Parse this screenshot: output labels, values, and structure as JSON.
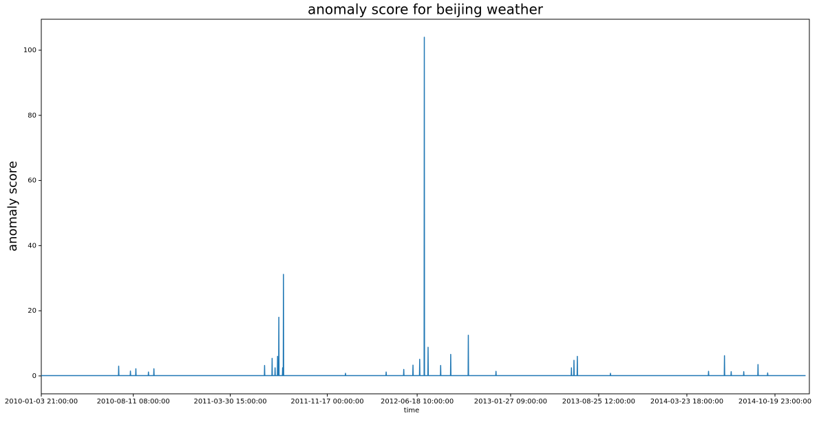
{
  "chart_data": {
    "type": "line",
    "title": "anomaly score for beijing weather",
    "xlabel": "time",
    "ylabel": "anomaly score",
    "x": [
      "2010-01-03 21:00:00",
      "2010-07-07 00:00:00",
      "2010-07-07 12:00:00",
      "2010-07-08 00:00:00",
      "2010-08-04 00:00:00",
      "2010-08-04 12:00:00",
      "2010-08-05 00:00:00",
      "2010-08-17 00:00:00",
      "2010-08-17 12:00:00",
      "2010-08-18 00:00:00",
      "2010-09-16 00:00:00",
      "2010-09-16 12:00:00",
      "2010-09-17 00:00:00",
      "2010-09-29 00:00:00",
      "2010-09-29 12:00:00",
      "2010-09-30 00:00:00",
      "2011-06-20 00:00:00",
      "2011-06-20 12:00:00",
      "2011-06-21 00:00:00",
      "2011-07-08 00:00:00",
      "2011-07-08 12:00:00",
      "2011-07-09 00:00:00",
      "2011-07-15 00:00:00",
      "2011-07-15 12:00:00",
      "2011-07-16 00:00:00",
      "2011-07-21 00:00:00",
      "2011-07-21 12:00:00",
      "2011-07-22 00:00:00",
      "2011-07-24 00:00:00",
      "2011-07-24 12:00:00",
      "2011-07-25 00:00:00",
      "2011-08-02 00:00:00",
      "2011-08-02 12:00:00",
      "2011-08-03 00:00:00",
      "2011-08-04 00:00:00",
      "2011-08-04 12:00:00",
      "2011-08-05 00:00:00",
      "2011-12-30 00:00:00",
      "2011-12-30 12:00:00",
      "2011-12-31 00:00:00",
      "2012-04-05 00:00:00",
      "2012-04-05 12:00:00",
      "2012-04-06 00:00:00",
      "2012-05-17 00:00:00",
      "2012-05-17 12:00:00",
      "2012-05-18 00:00:00",
      "2012-06-08 00:00:00",
      "2012-06-08 12:00:00",
      "2012-06-09 00:00:00",
      "2012-06-24 00:00:00",
      "2012-06-24 12:00:00",
      "2012-06-25 00:00:00",
      "2012-07-05 00:00:00",
      "2012-07-05 12:00:00",
      "2012-07-06 00:00:00",
      "2012-07-14 00:00:00",
      "2012-07-14 12:00:00",
      "2012-07-15 00:00:00",
      "2012-08-13 00:00:00",
      "2012-08-13 12:00:00",
      "2012-08-14 00:00:00",
      "2012-09-06 00:00:00",
      "2012-09-06 12:00:00",
      "2012-09-07 00:00:00",
      "2012-10-18 00:00:00",
      "2012-10-18 12:00:00",
      "2012-10-19 00:00:00",
      "2012-12-23 00:00:00",
      "2012-12-23 12:00:00",
      "2012-12-24 00:00:00",
      "2013-06-21 00:00:00",
      "2013-06-21 12:00:00",
      "2013-06-22 00:00:00",
      "2013-06-27 00:00:00",
      "2013-06-27 12:00:00",
      "2013-06-28 00:00:00",
      "2013-07-05 00:00:00",
      "2013-07-05 12:00:00",
      "2013-07-06 00:00:00",
      "2013-09-22 00:00:00",
      "2013-09-22 12:00:00",
      "2013-09-23 00:00:00",
      "2014-05-14 00:00:00",
      "2014-05-14 12:00:00",
      "2014-05-15 00:00:00",
      "2014-06-21 00:00:00",
      "2014-06-21 12:00:00",
      "2014-06-22 00:00:00",
      "2014-07-07 00:00:00",
      "2014-07-07 12:00:00",
      "2014-07-08 00:00:00",
      "2014-08-06 00:00:00",
      "2014-08-06 12:00:00",
      "2014-08-07 00:00:00",
      "2014-09-09 00:00:00",
      "2014-09-09 12:00:00",
      "2014-09-10 00:00:00",
      "2014-10-02 00:00:00",
      "2014-10-02 12:00:00",
      "2014-10-03 00:00:00",
      "2014-12-31 23:00:00"
    ],
    "values": [
      0.1,
      0.1,
      3.0,
      0.1,
      0.1,
      1.5,
      0.1,
      0.1,
      2.2,
      0.1,
      0.1,
      1.2,
      0.1,
      0.1,
      2.2,
      0.1,
      0.1,
      3.2,
      0.1,
      0.1,
      5.4,
      0.1,
      0.1,
      2.5,
      0.1,
      0.1,
      6,
      0.1,
      0.1,
      18,
      0.1,
      0.1,
      2.5,
      0.1,
      0.1,
      31.2,
      0.1,
      0.1,
      0.8,
      0.1,
      0.1,
      1.2,
      0.1,
      0.1,
      2,
      0.1,
      0.1,
      3.3,
      0.1,
      0.1,
      5.1,
      0.1,
      0.1,
      104,
      0.1,
      0.1,
      8.8,
      0.1,
      0.1,
      3.2,
      0.1,
      0.1,
      6.6,
      0.1,
      0.1,
      12.5,
      0.1,
      0.1,
      1.4,
      0.1,
      0.1,
      2.5,
      0.1,
      0.1,
      4.8,
      0.1,
      0.1,
      6,
      0.1,
      0.1,
      0.8,
      0.1,
      0.1,
      1.4,
      0.1,
      0.1,
      6.2,
      0.1,
      0.1,
      1.3,
      0.1,
      0.1,
      1.3,
      0.1,
      0.1,
      3.5,
      0.1,
      0.1,
      0.9,
      0.1,
      0.1
    ],
    "color": "#1f77b4",
    "xlim": [
      "2010-01-03 21:00:00",
      "2015-01-10 00:00:00"
    ],
    "xticks": [
      "2010-01-03 21:00:00",
      "2010-08-11 08:00:00",
      "2011-03-30 15:00:00",
      "2011-11-17 00:00:00",
      "2012-06-18 10:00:00",
      "2013-01-27 09:00:00",
      "2013-08-25 12:00:00",
      "2014-03-23 18:00:00",
      "2014-10-19 23:00:00"
    ],
    "ylim": [
      -5.5,
      109.5
    ],
    "yticks": [
      0,
      20,
      40,
      60,
      80,
      100
    ]
  }
}
